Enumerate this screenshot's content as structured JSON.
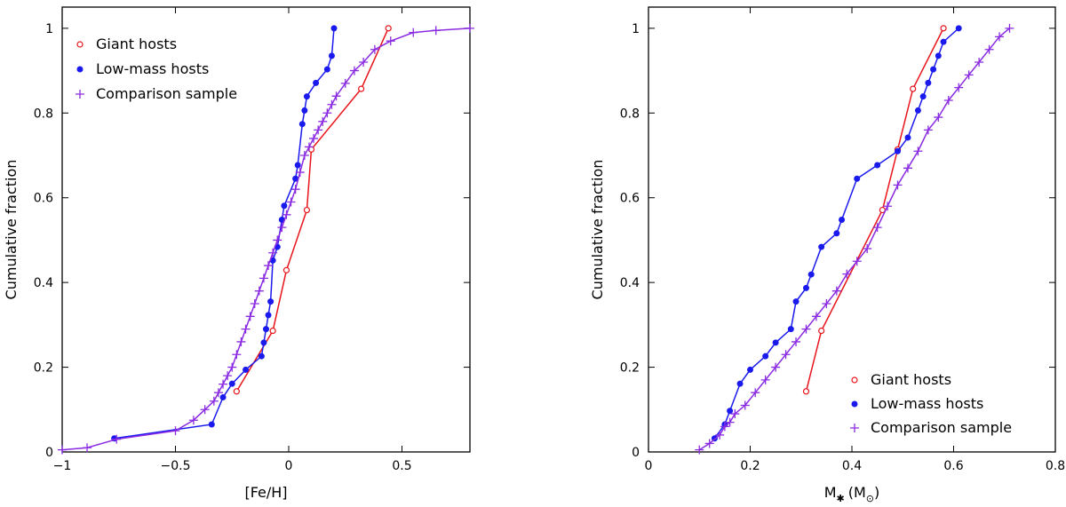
{
  "chart_data": [
    {
      "type": "line",
      "xlabel": "[Fe/H]",
      "ylabel": "Cumulative fraction",
      "xlim": [
        -1,
        0.8
      ],
      "ylim": [
        0,
        1.05
      ],
      "xticks": [
        "−1",
        "−0.5",
        "0",
        "0.5"
      ],
      "xtick_values": [
        -1,
        -0.5,
        0,
        0.5
      ],
      "yticks": [
        "0",
        "0.2",
        "0.4",
        "0.6",
        "0.8",
        "1"
      ],
      "ytick_values": [
        0,
        0.2,
        0.4,
        0.6,
        0.8,
        1
      ],
      "legend_position": "top-left",
      "series": [
        {
          "name": "Giant hosts",
          "color": "#e8141b",
          "marker": "open-circle",
          "x": [
            -0.23,
            -0.07,
            -0.01,
            0.08,
            0.1,
            0.32,
            0.44
          ],
          "y": [
            0.143,
            0.286,
            0.429,
            0.571,
            0.714,
            0.857,
            1.0
          ]
        },
        {
          "name": "Low-mass hosts",
          "color": "#1a1aee",
          "marker": "filled-circle",
          "x": [
            -0.77,
            -0.34,
            -0.29,
            -0.25,
            -0.19,
            -0.12,
            -0.11,
            -0.1,
            -0.09,
            -0.08,
            -0.07,
            -0.05,
            -0.03,
            -0.02,
            0.03,
            0.04,
            0.06,
            0.07,
            0.08,
            0.12,
            0.17,
            0.19,
            0.2
          ],
          "y": [
            0.032,
            0.065,
            0.129,
            0.161,
            0.194,
            0.226,
            0.258,
            0.29,
            0.323,
            0.355,
            0.452,
            0.484,
            0.548,
            0.581,
            0.645,
            0.677,
            0.774,
            0.806,
            0.839,
            0.871,
            0.903,
            0.935,
            1.0
          ]
        },
        {
          "name": "Comparison sample",
          "color": "#8a2be2",
          "marker": "plus",
          "x": [
            -1.0,
            -0.89,
            -0.76,
            -0.5,
            -0.42,
            -0.37,
            -0.33,
            -0.31,
            -0.29,
            -0.27,
            -0.25,
            -0.23,
            -0.21,
            -0.19,
            -0.17,
            -0.15,
            -0.13,
            -0.11,
            -0.09,
            -0.07,
            -0.05,
            -0.03,
            -0.01,
            0.01,
            0.03,
            0.05,
            0.07,
            0.09,
            0.11,
            0.13,
            0.15,
            0.17,
            0.19,
            0.21,
            0.25,
            0.29,
            0.33,
            0.38,
            0.45,
            0.55,
            0.65,
            0.8
          ],
          "y": [
            0.005,
            0.01,
            0.03,
            0.05,
            0.075,
            0.1,
            0.12,
            0.14,
            0.16,
            0.18,
            0.2,
            0.23,
            0.26,
            0.29,
            0.32,
            0.35,
            0.38,
            0.41,
            0.44,
            0.47,
            0.5,
            0.53,
            0.56,
            0.59,
            0.62,
            0.66,
            0.7,
            0.72,
            0.74,
            0.76,
            0.78,
            0.8,
            0.82,
            0.84,
            0.87,
            0.9,
            0.92,
            0.95,
            0.97,
            0.99,
            0.995,
            1.0
          ]
        }
      ]
    },
    {
      "type": "line",
      "xlabel": "M",
      "xlabel_sub": "✱",
      "xlabel_unit": "(M",
      "xlabel_unit_sub": "⊙",
      "xlabel_close": ")",
      "ylabel": "Cumulative fraction",
      "xlim": [
        0,
        0.8
      ],
      "ylim": [
        0,
        1.05
      ],
      "xticks": [
        "0",
        "0.2",
        "0.4",
        "0.6",
        "0.8"
      ],
      "xtick_values": [
        0,
        0.2,
        0.4,
        0.6,
        0.8
      ],
      "yticks": [
        "0",
        "0.2",
        "0.4",
        "0.6",
        "0.8",
        "1"
      ],
      "ytick_values": [
        0,
        0.2,
        0.4,
        0.6,
        0.8,
        1
      ],
      "legend_position": "bottom-right",
      "series": [
        {
          "name": "Giant hosts",
          "color": "#e8141b",
          "marker": "open-circle",
          "x": [
            0.31,
            0.34,
            0.46,
            0.49,
            0.52,
            0.58
          ],
          "y": [
            0.143,
            0.286,
            0.571,
            0.714,
            0.857,
            1.0
          ]
        },
        {
          "name": "Low-mass hosts",
          "color": "#1a1aee",
          "marker": "filled-circle",
          "x": [
            0.13,
            0.15,
            0.16,
            0.18,
            0.2,
            0.23,
            0.25,
            0.28,
            0.29,
            0.31,
            0.32,
            0.34,
            0.37,
            0.38,
            0.41,
            0.45,
            0.49,
            0.51,
            0.53,
            0.54,
            0.55,
            0.56,
            0.57,
            0.58,
            0.61
          ],
          "y": [
            0.032,
            0.065,
            0.097,
            0.161,
            0.194,
            0.226,
            0.258,
            0.29,
            0.355,
            0.387,
            0.419,
            0.484,
            0.516,
            0.548,
            0.645,
            0.677,
            0.71,
            0.742,
            0.806,
            0.839,
            0.871,
            0.903,
            0.935,
            0.968,
            1.0
          ]
        },
        {
          "name": "Comparison sample",
          "color": "#8a2be2",
          "marker": "plus",
          "x": [
            0.1,
            0.12,
            0.14,
            0.15,
            0.16,
            0.17,
            0.19,
            0.21,
            0.23,
            0.25,
            0.27,
            0.29,
            0.31,
            0.33,
            0.35,
            0.37,
            0.39,
            0.41,
            0.43,
            0.45,
            0.47,
            0.49,
            0.51,
            0.53,
            0.55,
            0.57,
            0.59,
            0.61,
            0.63,
            0.65,
            0.67,
            0.69,
            0.71
          ],
          "y": [
            0.005,
            0.02,
            0.04,
            0.06,
            0.07,
            0.09,
            0.11,
            0.14,
            0.17,
            0.2,
            0.23,
            0.26,
            0.29,
            0.32,
            0.35,
            0.38,
            0.42,
            0.45,
            0.48,
            0.53,
            0.58,
            0.63,
            0.67,
            0.71,
            0.76,
            0.79,
            0.83,
            0.86,
            0.89,
            0.92,
            0.95,
            0.98,
            1.0
          ]
        }
      ]
    }
  ]
}
